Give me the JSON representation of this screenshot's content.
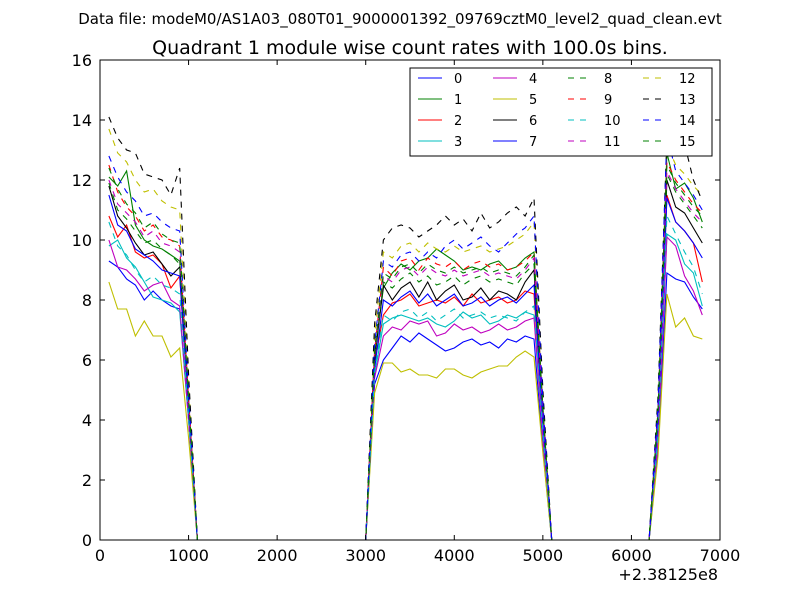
{
  "figure": {
    "suptitle": "Data file: modeM0/AS1A03_080T01_9000001392_09769cztM0_level2_quad_clean.evt"
  },
  "chart_data": {
    "type": "line",
    "title": "Quadrant 1 module wise count rates with 100.0s bins.",
    "xlabel": "",
    "ylabel": "",
    "x_offset_label": "+2.38125e8",
    "xlim": [
      0,
      7000
    ],
    "ylim": [
      0,
      16
    ],
    "xticks": [
      0,
      1000,
      2000,
      3000,
      4000,
      5000,
      6000,
      7000
    ],
    "yticks": [
      0,
      2,
      4,
      6,
      8,
      10,
      12,
      14,
      16
    ],
    "x": [
      100,
      200,
      300,
      400,
      500,
      600,
      700,
      800,
      900,
      1000,
      1100,
      1200,
      1300,
      1400,
      1500,
      1600,
      1700,
      1800,
      1900,
      2000,
      2100,
      2200,
      2300,
      2400,
      2500,
      2600,
      2700,
      2800,
      2900,
      3000,
      3100,
      3200,
      3300,
      3400,
      3500,
      3600,
      3700,
      3800,
      3900,
      4000,
      4100,
      4200,
      4300,
      4400,
      4500,
      4600,
      4700,
      4800,
      4900,
      5000,
      5100,
      5200,
      5300,
      5400,
      5500,
      5600,
      5700,
      5800,
      5900,
      6000,
      6100,
      6200,
      6300,
      6400,
      6500,
      6600,
      6700,
      6800
    ],
    "legend": {
      "position": "top-right",
      "columns": 4
    },
    "series": [
      {
        "name": "0",
        "color": "#0000ff",
        "style": "solid",
        "values": [
          9.3,
          9.1,
          8.7,
          8.5,
          8.0,
          8.3,
          8.0,
          7.8,
          7.7,
          4.0,
          0,
          0,
          0,
          0,
          0,
          0,
          0,
          0,
          0,
          0,
          0,
          0,
          0,
          0,
          0,
          0,
          0,
          0,
          0,
          0,
          5.2,
          6.0,
          6.4,
          6.8,
          6.6,
          6.9,
          6.7,
          6.5,
          6.3,
          6.4,
          6.6,
          6.7,
          6.5,
          6.6,
          6.4,
          6.7,
          6.6,
          6.8,
          6.7,
          3.0,
          0,
          0,
          0,
          0,
          0,
          0,
          0,
          0,
          0,
          0,
          0,
          0,
          3.0,
          8.9,
          8.7,
          8.6,
          8.1,
          7.7
        ]
      },
      {
        "name": "1",
        "color": "#008000",
        "style": "solid",
        "values": [
          12.1,
          11.8,
          12.3,
          10.5,
          10.0,
          9.8,
          9.7,
          9.5,
          9.3,
          4.6,
          0,
          0,
          0,
          0,
          0,
          0,
          0,
          0,
          0,
          0,
          0,
          0,
          0,
          0,
          0,
          0,
          0,
          0,
          0,
          0,
          6.2,
          8.4,
          8.9,
          9.2,
          9.0,
          9.3,
          9.4,
          9.7,
          9.5,
          9.3,
          9.0,
          9.1,
          9.0,
          9.2,
          9.3,
          9.0,
          9.1,
          9.4,
          9.6,
          4.3,
          0,
          0,
          0,
          0,
          0,
          0,
          0,
          0,
          0,
          0,
          0,
          0,
          4.2,
          12.9,
          11.7,
          11.9,
          11.4,
          10.6
        ]
      },
      {
        "name": "2",
        "color": "#ff0000",
        "style": "solid",
        "values": [
          10.8,
          10.1,
          10.5,
          9.6,
          9.4,
          9.5,
          9.2,
          8.4,
          8.8,
          4.4,
          0,
          0,
          0,
          0,
          0,
          0,
          0,
          0,
          0,
          0,
          0,
          0,
          0,
          0,
          0,
          0,
          0,
          0,
          0,
          0,
          5.9,
          7.5,
          7.9,
          8.0,
          8.2,
          7.8,
          7.9,
          8.0,
          7.9,
          8.1,
          7.8,
          8.2,
          7.9,
          8.0,
          8.1,
          7.9,
          8.0,
          8.3,
          8.2,
          3.8,
          0,
          0,
          0,
          0,
          0,
          0,
          0,
          0,
          0,
          0,
          0,
          0,
          3.8,
          11.5,
          10.6,
          10.3,
          9.9,
          8.6
        ]
      },
      {
        "name": "3",
        "color": "#00bfbf",
        "style": "solid",
        "values": [
          9.8,
          10.0,
          9.4,
          9.1,
          8.6,
          8.1,
          8.0,
          7.9,
          7.6,
          4.0,
          0,
          0,
          0,
          0,
          0,
          0,
          0,
          0,
          0,
          0,
          0,
          0,
          0,
          0,
          0,
          0,
          0,
          0,
          0,
          0,
          5.5,
          7.2,
          7.4,
          7.5,
          7.4,
          7.3,
          7.4,
          7.2,
          7.1,
          7.3,
          7.6,
          7.4,
          7.5,
          7.2,
          7.3,
          7.5,
          7.4,
          7.6,
          7.5,
          3.5,
          0,
          0,
          0,
          0,
          0,
          0,
          0,
          0,
          0,
          0,
          0,
          0,
          3.4,
          10.2,
          10.0,
          9.2,
          8.9,
          7.8
        ]
      },
      {
        "name": "4",
        "color": "#bf00bf",
        "style": "solid",
        "values": [
          10.0,
          9.1,
          9.0,
          8.7,
          8.3,
          8.5,
          8.6,
          8.0,
          7.8,
          4.0,
          0,
          0,
          0,
          0,
          0,
          0,
          0,
          0,
          0,
          0,
          0,
          0,
          0,
          0,
          0,
          0,
          0,
          0,
          0,
          0,
          5.4,
          6.8,
          7.1,
          7.0,
          7.3,
          7.2,
          7.3,
          6.8,
          6.9,
          7.2,
          7.0,
          7.1,
          6.9,
          7.0,
          7.2,
          7.0,
          7.1,
          7.3,
          7.4,
          3.4,
          0,
          0,
          0,
          0,
          0,
          0,
          0,
          0,
          0,
          0,
          0,
          0,
          3.3,
          10.1,
          9.8,
          8.8,
          8.3,
          7.5
        ]
      },
      {
        "name": "5",
        "color": "#bfbf00",
        "style": "solid",
        "values": [
          8.6,
          7.7,
          7.7,
          6.8,
          7.3,
          6.8,
          6.8,
          6.1,
          6.4,
          3.4,
          0,
          0,
          0,
          0,
          0,
          0,
          0,
          0,
          0,
          0,
          0,
          0,
          0,
          0,
          0,
          0,
          0,
          0,
          0,
          0,
          4.9,
          5.9,
          5.9,
          5.6,
          5.7,
          5.5,
          5.5,
          5.4,
          5.7,
          5.7,
          5.5,
          5.4,
          5.6,
          5.7,
          5.8,
          5.8,
          6.1,
          6.3,
          6.1,
          2.9,
          0,
          0,
          0,
          0,
          0,
          0,
          0,
          0,
          0,
          0,
          0,
          0,
          2.8,
          8.2,
          7.1,
          7.4,
          6.8,
          6.7
        ]
      },
      {
        "name": "6",
        "color": "#000000",
        "style": "solid",
        "values": [
          11.8,
          10.8,
          10.4,
          9.9,
          9.5,
          9.6,
          9.2,
          8.8,
          9.1,
          4.5,
          0,
          0,
          0,
          0,
          0,
          0,
          0,
          0,
          0,
          0,
          0,
          0,
          0,
          0,
          0,
          0,
          0,
          0,
          0,
          0,
          6.0,
          8.5,
          8.0,
          8.4,
          8.6,
          8.1,
          8.6,
          8.0,
          8.3,
          8.5,
          8.0,
          8.1,
          8.4,
          8.0,
          8.3,
          8.2,
          8.0,
          8.6,
          9.0,
          4.1,
          0,
          0,
          0,
          0,
          0,
          0,
          0,
          0,
          0,
          0,
          0,
          0,
          4.0,
          12.0,
          11.1,
          10.9,
          10.4,
          9.9
        ]
      },
      {
        "name": "7",
        "color": "#0000ff",
        "style": "solid",
        "values": [
          11.5,
          10.5,
          10.3,
          9.7,
          9.5,
          9.3,
          9.0,
          8.9,
          8.8,
          4.4,
          0,
          0,
          0,
          0,
          0,
          0,
          0,
          0,
          0,
          0,
          0,
          0,
          0,
          0,
          0,
          0,
          0,
          0,
          0,
          0,
          5.7,
          8.0,
          7.8,
          8.1,
          8.3,
          7.9,
          8.2,
          7.8,
          8.0,
          8.2,
          7.8,
          7.9,
          8.1,
          7.8,
          8.0,
          8.1,
          7.9,
          8.2,
          8.5,
          3.9,
          0,
          0,
          0,
          0,
          0,
          0,
          0,
          0,
          0,
          0,
          0,
          0,
          3.9,
          11.4,
          10.6,
          10.3,
          9.9,
          9.4
        ]
      },
      {
        "name": "8",
        "color": "#008000",
        "style": "dashed",
        "values": [
          11.9,
          11.0,
          10.7,
          10.3,
          9.9,
          10.0,
          9.7,
          9.5,
          9.2,
          4.6,
          0,
          0,
          0,
          0,
          0,
          0,
          0,
          0,
          0,
          0,
          0,
          0,
          0,
          0,
          0,
          0,
          0,
          0,
          0,
          0,
          6.1,
          8.6,
          8.4,
          8.7,
          8.9,
          8.6,
          8.8,
          8.5,
          8.6,
          8.8,
          8.5,
          8.7,
          8.8,
          8.6,
          8.7,
          8.6,
          8.5,
          8.9,
          9.2,
          4.3,
          0,
          0,
          0,
          0,
          0,
          0,
          0,
          0,
          0,
          0,
          0,
          0,
          4.2,
          12.2,
          11.6,
          11.2,
          10.8,
          10.4
        ]
      },
      {
        "name": "9",
        "color": "#ff0000",
        "style": "dashed",
        "values": [
          12.5,
          11.6,
          11.1,
          10.8,
          10.3,
          10.5,
          10.1,
          10.0,
          9.8,
          4.7,
          0,
          0,
          0,
          0,
          0,
          0,
          0,
          0,
          0,
          0,
          0,
          0,
          0,
          0,
          0,
          0,
          0,
          0,
          0,
          0,
          6.3,
          9.1,
          8.8,
          9.3,
          9.4,
          9.0,
          9.4,
          9.2,
          9.1,
          9.3,
          9.0,
          9.2,
          9.3,
          9.1,
          9.2,
          9.0,
          9.1,
          9.3,
          9.6,
          4.4,
          0,
          0,
          0,
          0,
          0,
          0,
          0,
          0,
          0,
          0,
          0,
          0,
          4.3,
          12.6,
          12.0,
          11.6,
          11.2,
          10.9
        ]
      },
      {
        "name": "10",
        "color": "#00bfbf",
        "style": "dashed",
        "values": [
          10.6,
          9.8,
          9.5,
          9.0,
          8.6,
          8.8,
          8.5,
          8.4,
          8.2,
          4.1,
          0,
          0,
          0,
          0,
          0,
          0,
          0,
          0,
          0,
          0,
          0,
          0,
          0,
          0,
          0,
          0,
          0,
          0,
          0,
          0,
          5.6,
          7.5,
          7.3,
          7.6,
          7.7,
          7.4,
          7.6,
          7.3,
          7.5,
          7.7,
          7.4,
          7.5,
          7.6,
          7.4,
          7.5,
          7.4,
          7.3,
          7.6,
          7.8,
          3.6,
          0,
          0,
          0,
          0,
          0,
          0,
          0,
          0,
          0,
          0,
          0,
          0,
          3.5,
          10.8,
          10.2,
          9.6,
          9.1,
          8.2
        ]
      },
      {
        "name": "11",
        "color": "#bf00bf",
        "style": "dashed",
        "values": [
          12.0,
          11.2,
          10.9,
          10.6,
          10.1,
          10.3,
          9.9,
          9.8,
          9.6,
          4.6,
          0,
          0,
          0,
          0,
          0,
          0,
          0,
          0,
          0,
          0,
          0,
          0,
          0,
          0,
          0,
          0,
          0,
          0,
          0,
          0,
          6.2,
          8.8,
          8.6,
          9.0,
          9.1,
          8.8,
          9.1,
          8.9,
          8.8,
          9.0,
          8.8,
          8.9,
          9.0,
          8.8,
          8.9,
          8.8,
          8.7,
          9.0,
          9.4,
          4.3,
          0,
          0,
          0,
          0,
          0,
          0,
          0,
          0,
          0,
          0,
          0,
          0,
          4.2,
          12.3,
          11.7,
          11.3,
          10.9,
          10.6
        ]
      },
      {
        "name": "12",
        "color": "#bfbf00",
        "style": "dashed",
        "values": [
          13.7,
          12.9,
          12.6,
          12.0,
          11.6,
          11.7,
          11.3,
          11.1,
          11.0,
          5.3,
          0,
          0,
          0,
          0,
          0,
          0,
          0,
          0,
          0,
          0,
          0,
          0,
          0,
          0,
          0,
          0,
          0,
          0,
          0,
          0,
          6.8,
          9.6,
          9.4,
          9.8,
          9.9,
          9.6,
          9.9,
          9.7,
          9.6,
          9.8,
          9.6,
          9.7,
          9.8,
          9.6,
          9.7,
          9.8,
          10.0,
          10.2,
          10.6,
          4.8,
          0,
          0,
          0,
          0,
          0,
          0,
          0,
          0,
          0,
          0,
          0,
          0,
          4.6,
          13.2,
          12.5,
          12.2,
          11.8,
          11.5
        ]
      },
      {
        "name": "13",
        "color": "#000000",
        "style": "dashed",
        "values": [
          14.1,
          13.4,
          13.0,
          12.9,
          12.2,
          12.1,
          12.0,
          11.5,
          12.4,
          5.5,
          0,
          0,
          0,
          0,
          0,
          0,
          0,
          0,
          0,
          0,
          0,
          0,
          0,
          0,
          0,
          0,
          0,
          0,
          0,
          0,
          7.2,
          10.0,
          10.4,
          10.5,
          10.4,
          10.1,
          10.3,
          10.5,
          10.8,
          10.5,
          10.7,
          10.3,
          10.9,
          10.4,
          10.6,
          10.9,
          11.1,
          10.8,
          11.4,
          5.0,
          0,
          0,
          0,
          0,
          0,
          0,
          0,
          0,
          0,
          0,
          0,
          0,
          4.8,
          13.4,
          12.8,
          13.2,
          12.0,
          11.3
        ]
      },
      {
        "name": "14",
        "color": "#0000ff",
        "style": "dashed",
        "values": [
          12.8,
          12.1,
          11.6,
          11.3,
          10.8,
          10.9,
          10.6,
          10.4,
          10.3,
          4.9,
          0,
          0,
          0,
          0,
          0,
          0,
          0,
          0,
          0,
          0,
          0,
          0,
          0,
          0,
          0,
          0,
          0,
          0,
          0,
          0,
          6.5,
          9.3,
          9.1,
          9.5,
          9.6,
          9.3,
          9.6,
          9.4,
          9.8,
          10.0,
          9.7,
          9.9,
          10.1,
          9.8,
          9.6,
          9.9,
          10.2,
          10.4,
          10.8,
          4.6,
          0,
          0,
          0,
          0,
          0,
          0,
          0,
          0,
          0,
          0,
          0,
          0,
          4.5,
          13.5,
          12.3,
          11.9,
          11.5,
          11.0
        ]
      },
      {
        "name": "15",
        "color": "#008000",
        "style": "dashed",
        "values": [
          12.4,
          11.7,
          11.2,
          10.9,
          10.4,
          10.6,
          10.2,
          10.0,
          9.9,
          4.7,
          0,
          0,
          0,
          0,
          0,
          0,
          0,
          0,
          0,
          0,
          0,
          0,
          0,
          0,
          0,
          0,
          0,
          0,
          0,
          0,
          6.3,
          8.9,
          8.7,
          9.1,
          9.2,
          8.9,
          9.2,
          9.0,
          8.9,
          9.1,
          8.9,
          9.0,
          9.1,
          8.9,
          9.0,
          8.9,
          8.8,
          9.1,
          9.5,
          4.4,
          0,
          0,
          0,
          0,
          0,
          0,
          0,
          0,
          0,
          0,
          0,
          0,
          4.3,
          12.5,
          11.9,
          11.5,
          11.1,
          10.8
        ]
      }
    ]
  }
}
